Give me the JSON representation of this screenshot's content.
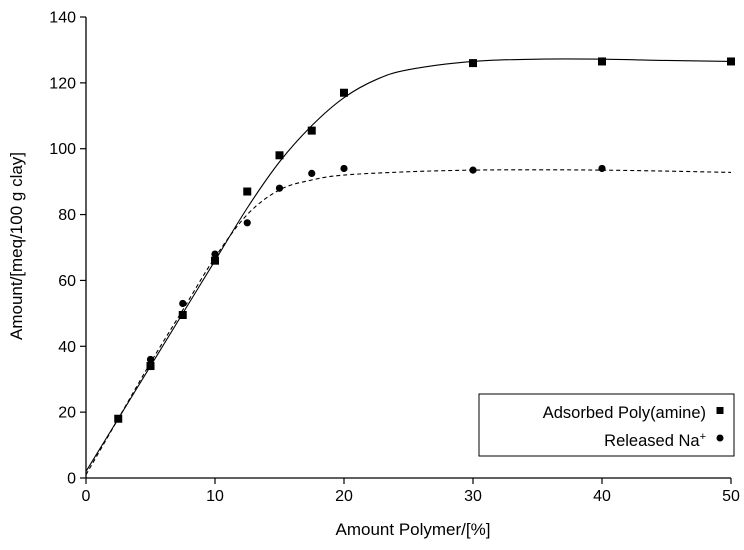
{
  "chart_data": {
    "type": "scatter",
    "title": "",
    "xlabel": "Amount Polymer/[%]",
    "ylabel": "Amount/[meq/100 g clay]",
    "xlim": [
      0,
      50
    ],
    "ylim": [
      0,
      140
    ],
    "xticks": [
      0,
      10,
      20,
      30,
      40,
      50
    ],
    "yticks": [
      0,
      20,
      40,
      60,
      80,
      100,
      120,
      140
    ],
    "grid": false,
    "legend_position": "bottom-right",
    "series": [
      {
        "name": "Adsorbed Poly(amine)",
        "marker": "square",
        "line_style": "solid",
        "x": [
          2.5,
          5,
          7.5,
          10,
          12.5,
          15,
          17.5,
          20,
          30,
          40,
          50
        ],
        "y": [
          18,
          34,
          49.5,
          66,
          87,
          98,
          105.5,
          117,
          126,
          126.5,
          126.5
        ],
        "fit_x": [
          0,
          2.5,
          5,
          7.5,
          10,
          12.5,
          15,
          17.5,
          20,
          22.5,
          25,
          30,
          35,
          40,
          45,
          50
        ],
        "fit_y": [
          2,
          18,
          34,
          50,
          66,
          82,
          96,
          107,
          115.5,
          121,
          124,
          126.5,
          127.2,
          127.2,
          126.8,
          126.5
        ]
      },
      {
        "name": "Released Na+",
        "legend_base": "Released Na",
        "legend_superscript": "+",
        "marker": "circle",
        "line_style": "dashed",
        "x": [
          2.5,
          5,
          7.5,
          10,
          12.5,
          15,
          17.5,
          20,
          30,
          40
        ],
        "y": [
          18,
          36,
          53,
          68,
          77.5,
          88,
          92.5,
          94,
          93.5,
          94
        ],
        "fit_x": [
          0,
          2.5,
          5,
          7.5,
          10,
          12.5,
          15,
          17.5,
          20,
          25,
          30,
          35,
          40,
          45,
          50
        ],
        "fit_y": [
          1,
          18,
          35,
          51,
          67,
          80,
          87.5,
          90.5,
          92,
          93,
          93.5,
          93.6,
          93.5,
          93.2,
          92.8
        ]
      }
    ]
  }
}
